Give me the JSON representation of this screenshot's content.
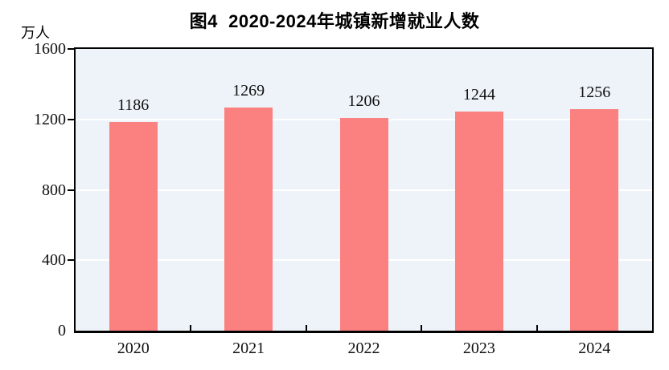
{
  "chart_data": {
    "type": "bar",
    "title": "图4  2020-2024年城镇新增就业人数",
    "ylabel": "万人",
    "xlabel": "",
    "categories": [
      "2020",
      "2021",
      "2022",
      "2023",
      "2024"
    ],
    "values": [
      1186,
      1269,
      1206,
      1244,
      1256
    ],
    "ylim": [
      0,
      1600
    ],
    "yticks": [
      0,
      400,
      800,
      1200,
      1600
    ],
    "gridlines_at": [
      400,
      800,
      1200
    ],
    "grid": true,
    "legend_position": "none",
    "data_labels_shown": true,
    "colors": {
      "bar": "#FB8080",
      "plot_background": "#EDF3F8",
      "gridline": "#FFFFFF",
      "axis": "#000000",
      "text": "#111111"
    }
  }
}
